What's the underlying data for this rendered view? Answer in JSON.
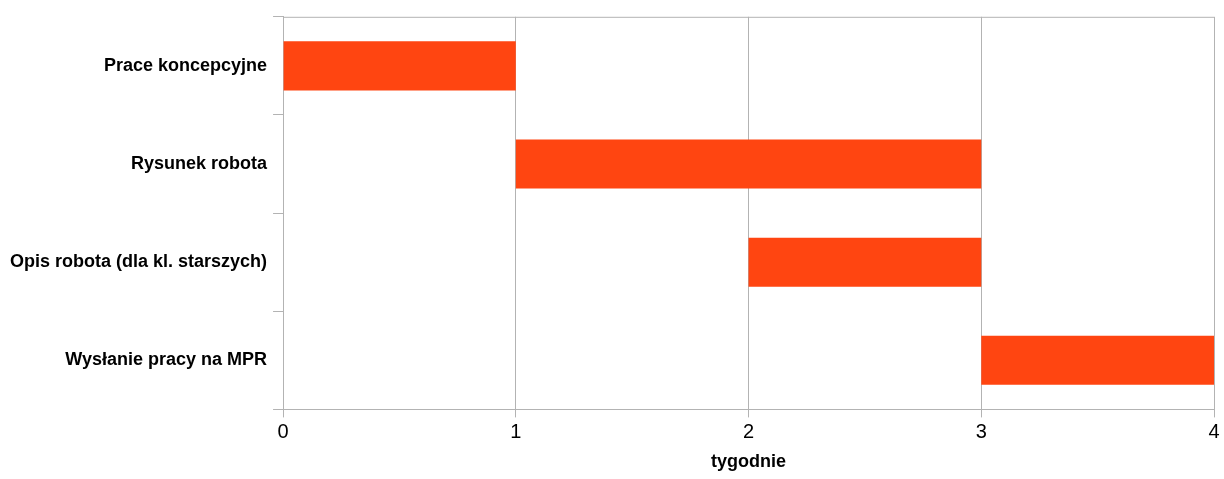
{
  "chart_data": {
    "type": "bar",
    "orientation": "horizontal",
    "xlabel": "tygodnie",
    "categories": [
      "Prace koncepcyjne",
      "Rysunek robota",
      "Opis robota (dla kl. starszych)",
      "Wysłanie pracy na MPR"
    ],
    "values": [
      1,
      2,
      1,
      1
    ],
    "base": [
      0,
      1,
      2,
      3
    ],
    "color": "#ff4511",
    "xlim": [
      0,
      4
    ],
    "xticks": [
      0,
      1,
      2,
      3,
      4
    ],
    "grid": "x",
    "legend": false
  }
}
